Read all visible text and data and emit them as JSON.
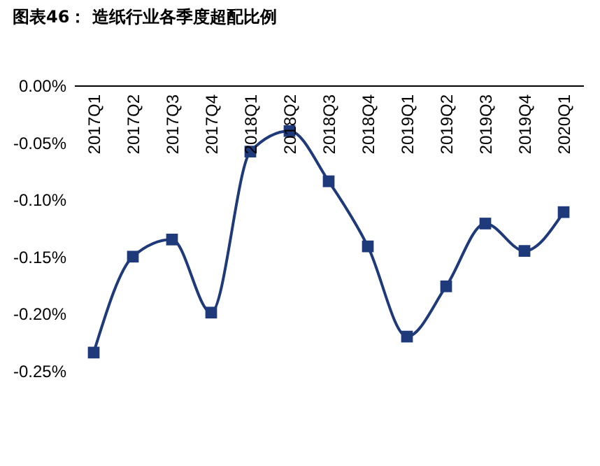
{
  "chart_data": {
    "type": "line",
    "title": "图表46：  造纸行业各季度超配比例",
    "categories": [
      "2017Q1",
      "2017Q2",
      "2017Q3",
      "2017Q4",
      "2018Q1",
      "2018Q2",
      "2018Q3",
      "2018Q4",
      "2019Q1",
      "2019Q2",
      "2019Q3",
      "2019Q4",
      "2020Q1"
    ],
    "series": [
      {
        "color": "#1f3a7a",
        "values": [
          -0.234,
          -0.15,
          -0.135,
          -0.199,
          -0.058,
          -0.04,
          -0.084,
          -0.141,
          -0.22,
          -0.176,
          -0.121,
          -0.145,
          -0.111
        ]
      }
    ],
    "ylim": [
      -0.25,
      0
    ],
    "yticks": [
      {
        "value": 0,
        "label": "0.00%"
      },
      {
        "value": -0.05,
        "label": "-0.05%"
      },
      {
        "value": -0.1,
        "label": "-0.10%"
      },
      {
        "value": -0.15,
        "label": "-0.15%"
      },
      {
        "value": -0.2,
        "label": "-0.20%"
      },
      {
        "value": -0.25,
        "label": "-0.25%"
      }
    ],
    "marker": "square",
    "grid": false
  }
}
